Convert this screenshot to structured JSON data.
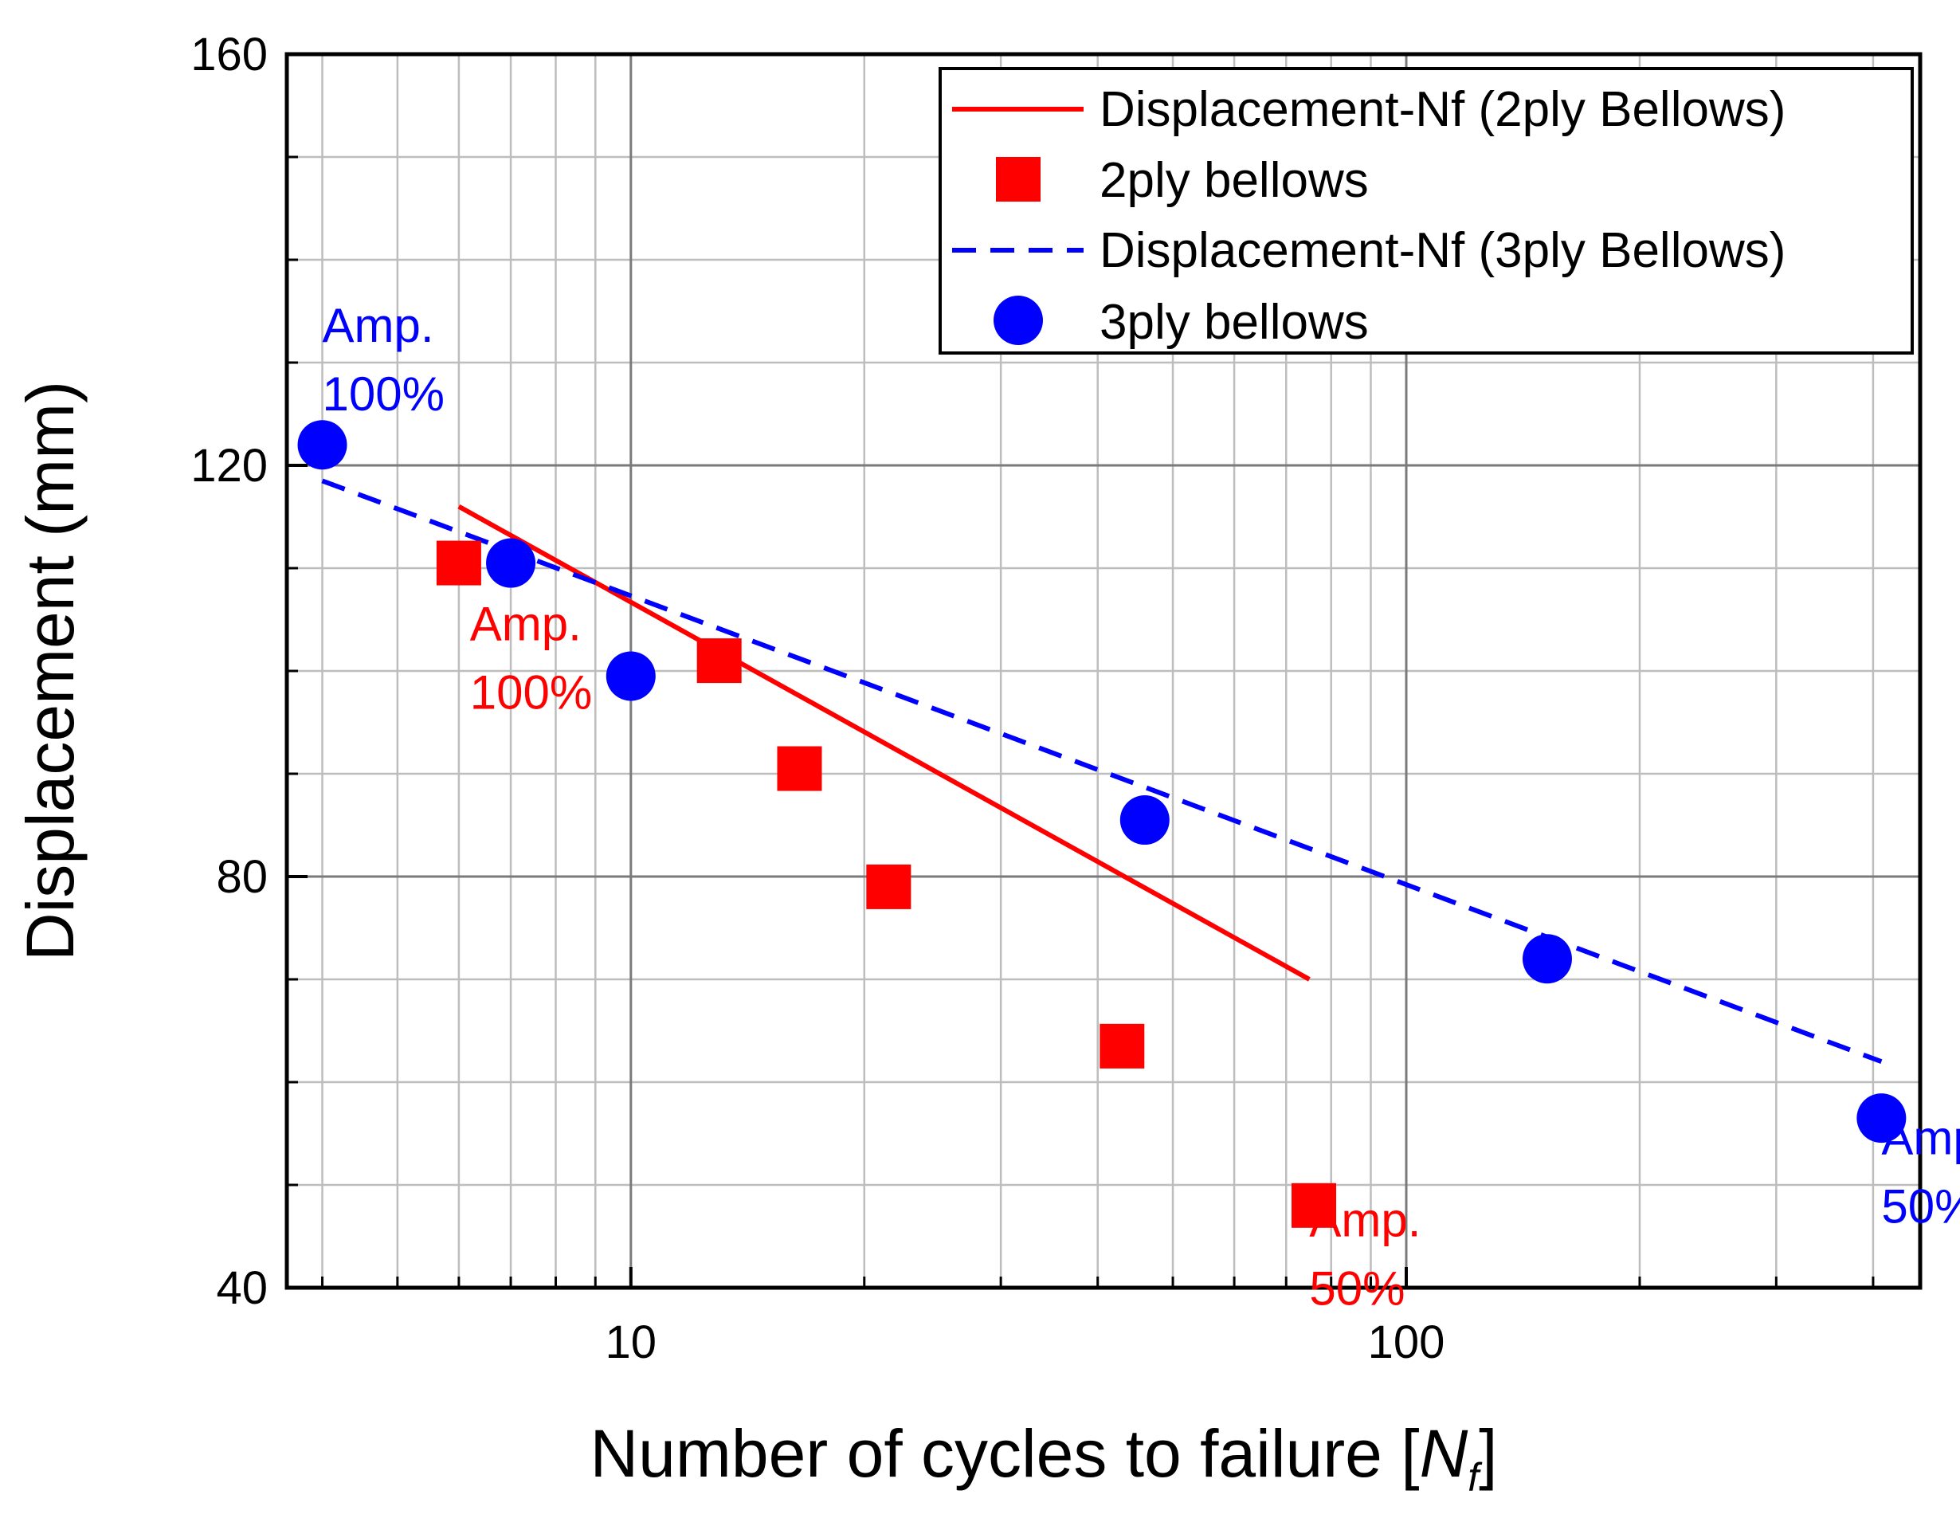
{
  "chart_data": {
    "type": "scatter",
    "title": "",
    "xlabel": "Number of cycles to failure",
    "xlabel_symbol": "N",
    "xlabel_subscript": "f",
    "ylabel": "Displacement (mm)",
    "xscale": "log",
    "xlim": [
      3.6,
      460
    ],
    "ylim": [
      40,
      160
    ],
    "x_ticks": [
      10,
      100
    ],
    "x_tick_labels": [
      "10",
      "100"
    ],
    "y_ticks": [
      40,
      80,
      120,
      160
    ],
    "y_tick_labels": [
      "40",
      "80",
      "120",
      "160"
    ],
    "grid": true,
    "legend_position": "top-right",
    "series": [
      {
        "name": "Displacement-Nf (2ply Bellows)",
        "kind": "line",
        "style": "solid",
        "color": "#ff0000",
        "x": [
          6,
          75
        ],
        "y": [
          116,
          70
        ]
      },
      {
        "name": "2ply bellows",
        "kind": "scatter",
        "marker": "square",
        "color": "#ff0000",
        "x": [
          6,
          13,
          16.5,
          21.5,
          43,
          76
        ],
        "y": [
          110.5,
          101,
          90.5,
          79,
          63.5,
          48
        ]
      },
      {
        "name": "Displacement-Nf (3ply Bellows)",
        "kind": "line",
        "style": "dashed",
        "color": "#0000ff",
        "x": [
          4,
          410
        ],
        "y": [
          118.5,
          62
        ]
      },
      {
        "name": "3ply bellows",
        "kind": "scatter",
        "marker": "circle",
        "color": "#0000ff",
        "x": [
          4,
          7,
          10,
          46,
          152,
          410
        ],
        "y": [
          122,
          110.5,
          99.5,
          85.5,
          72,
          56.5
        ]
      }
    ],
    "annotations": [
      {
        "line1": "Amp.",
        "line2": "100%",
        "color": "#0000ff",
        "x": 4,
        "y": 132
      },
      {
        "line1": "Amp.",
        "line2": "100%",
        "color": "#ff0000",
        "x": 6.2,
        "y": 103
      },
      {
        "line1": "Amp.",
        "line2": "50%",
        "color": "#ff0000",
        "x": 75,
        "y": 45
      },
      {
        "line1": "Amp.",
        "line2": "50%",
        "color": "#0000ff",
        "x": 410,
        "y": 53
      }
    ]
  }
}
